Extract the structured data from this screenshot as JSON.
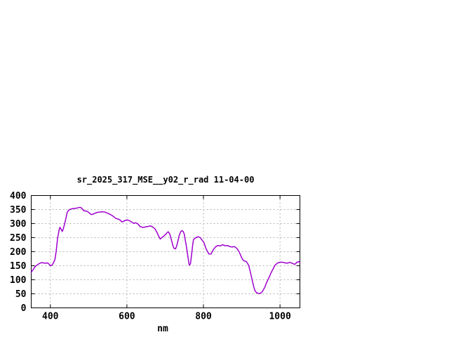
{
  "chart_data": {
    "type": "line",
    "title": "sr_2025_317_MSE__y02_r_rad 11-04-00",
    "xlabel": "nm",
    "ylabel": "",
    "xlim": [
      350,
      1052
    ],
    "ylim": [
      0,
      400
    ],
    "x_ticks": [
      400,
      600,
      800,
      1000
    ],
    "y_ticks": [
      0,
      50,
      100,
      150,
      200,
      250,
      300,
      350,
      400
    ],
    "grid": true,
    "legend": "none",
    "colors": {
      "line": "#9f00cf",
      "grid": "#b3b3b3",
      "axis": "#000000",
      "background": "#ffffff"
    },
    "series": [
      {
        "name": "sr_2025_317_MSE__y02_r_rad",
        "x": [
          350,
          355,
          360,
          366,
          371,
          377,
          382,
          388,
          393,
          397,
          400,
          404,
          408,
          412,
          415,
          419,
          423,
          425,
          428,
          431,
          433,
          437,
          441,
          444,
          448,
          452,
          457,
          463,
          468,
          474,
          477,
          481,
          485,
          488,
          494,
          499,
          505,
          508,
          512,
          518,
          523,
          528,
          534,
          539,
          545,
          550,
          556,
          561,
          567,
          572,
          578,
          583,
          587,
          591,
          596,
          602,
          607,
          613,
          618,
          623,
          629,
          634,
          640,
          645,
          651,
          656,
          662,
          667,
          673,
          678,
          684,
          687,
          691,
          695,
          700,
          705,
          708,
          712,
          716,
          720,
          723,
          727,
          730,
          734,
          737,
          741,
          744,
          747,
          750,
          752,
          755,
          758,
          761,
          763,
          766,
          769,
          772,
          774,
          778,
          783,
          787,
          792,
          796,
          801,
          807,
          814,
          820,
          826,
          832,
          838,
          845,
          850,
          857,
          863,
          869,
          875,
          881,
          887,
          893,
          900,
          905,
          912,
          918,
          923,
          928,
          932,
          935,
          939,
          944,
          949,
          954,
          960,
          965,
          971,
          976,
          982,
          987,
          993,
          998,
          1004,
          1011,
          1018,
          1026,
          1033,
          1039,
          1044,
          1049,
          1052
        ],
        "y": [
          127,
          136,
          147,
          153,
          158,
          161,
          160,
          159,
          160,
          155,
          150,
          152,
          160,
          172,
          200,
          248,
          278,
          287,
          280,
          272,
          278,
          298,
          320,
          340,
          348,
          351,
          353,
          354,
          355,
          357,
          358,
          356,
          350,
          345,
          345,
          341,
          334,
          332,
          334,
          338,
          340,
          341,
          342,
          342,
          340,
          337,
          333,
          329,
          323,
          318,
          316,
          312,
          306,
          308,
          312,
          313,
          310,
          305,
          301,
          303,
          299,
          290,
          287,
          287,
          289,
          290,
          292,
          288,
          282,
          270,
          253,
          245,
          250,
          254,
          260,
          268,
          271,
          263,
          243,
          222,
          212,
          210,
          220,
          242,
          260,
          272,
          275,
          272,
          262,
          245,
          222,
          195,
          168,
          152,
          157,
          190,
          225,
          243,
          248,
          252,
          253,
          250,
          242,
          233,
          210,
          192,
          192,
          208,
          218,
          222,
          221,
          225,
          221,
          222,
          218,
          217,
          218,
          212,
          200,
          178,
          168,
          165,
          152,
          125,
          95,
          72,
          60,
          54,
          51,
          52,
          58,
          73,
          90,
          107,
          123,
          139,
          152,
          159,
          162,
          163,
          161,
          159,
          162,
          158,
          155,
          162,
          165,
          162
        ]
      }
    ]
  }
}
